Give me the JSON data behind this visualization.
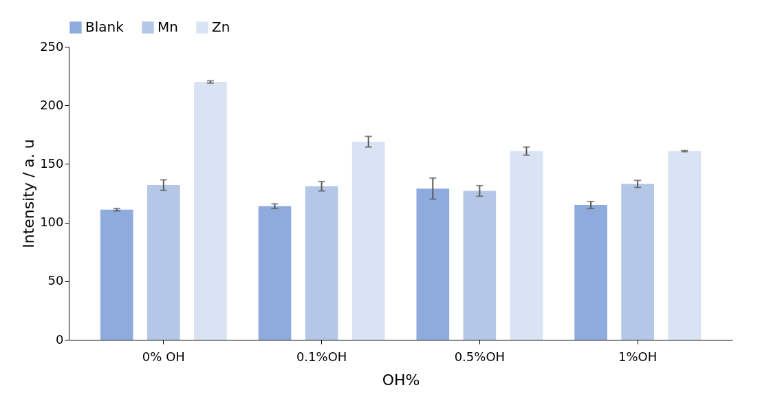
{
  "chart_data": {
    "type": "bar",
    "xlabel": "OH%",
    "ylabel": "Intensity / a. u",
    "categories": [
      "0% OH",
      "0.1%OH",
      "0.5%OH",
      "1%OH"
    ],
    "series": [
      {
        "name": "Blank",
        "color": "#8faadc",
        "values": [
          111,
          114,
          129,
          115
        ],
        "errors": [
          1,
          2,
          9,
          3
        ]
      },
      {
        "name": "Mn",
        "color": "#b4c7e7",
        "values": [
          132,
          131,
          127,
          133
        ],
        "errors": [
          4.5,
          4,
          4.5,
          3
        ]
      },
      {
        "name": "Zn",
        "color": "#dae3f3",
        "values": [
          220,
          169,
          161,
          161
        ],
        "errors": [
          1,
          4.5,
          3.5,
          0.5
        ]
      }
    ],
    "ylim": [
      0,
      250
    ],
    "yticks": [
      0,
      50,
      100,
      150,
      200,
      250
    ],
    "grid": false,
    "legend": "top"
  }
}
